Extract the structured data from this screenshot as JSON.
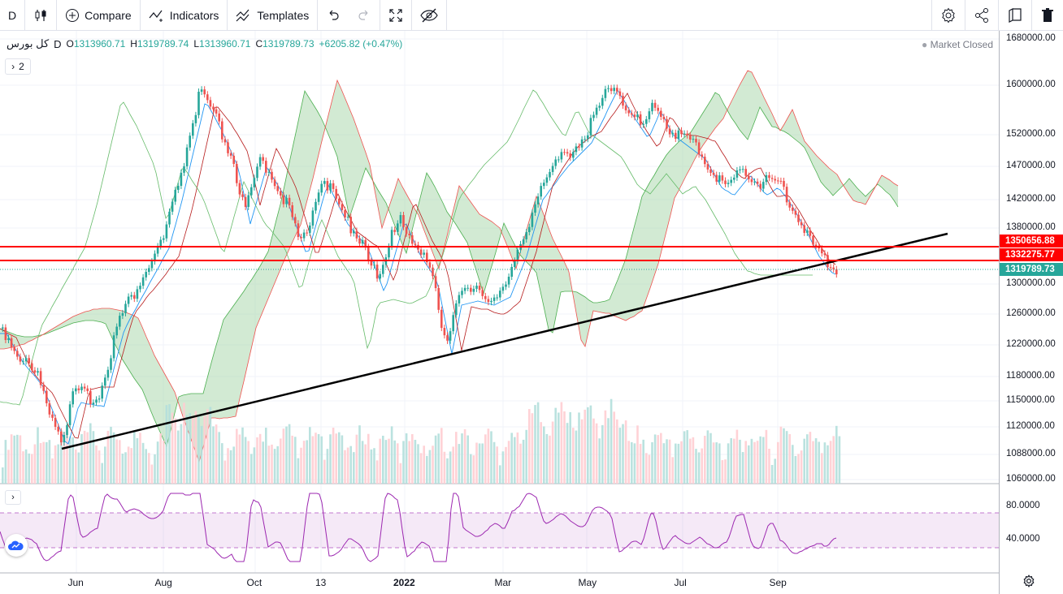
{
  "toolbar": {
    "interval": "D",
    "compare": "Compare",
    "indicators": "Indicators",
    "templates": "Templates"
  },
  "legend": {
    "symbol": "کل بورس",
    "interval": "D",
    "open_label": "O",
    "open": "1313960.71",
    "high_label": "H",
    "high": "1319789.74",
    "low_label": "L",
    "low": "1313960.71",
    "close_label": "C",
    "close": "1319789.73",
    "change": "+6205.82 (+0.47%)",
    "market_status": "Market Closed",
    "collapsed_count": "2"
  },
  "price_axis": {
    "labels": [
      "1680000.00",
      "1600000.00",
      "1520000.00",
      "1470000.00",
      "1420000.00",
      "1380000.00",
      "1300000.00",
      "1260000.00",
      "1220000.00",
      "1180000.00",
      "1150000.00",
      "1120000.00",
      "1088000.00",
      "1060000.00"
    ],
    "tag_red_1": "1350656.88",
    "tag_red_2": "1332275.77",
    "tag_last": "1319789.73"
  },
  "rsi_axis": {
    "labels": [
      "80.0000",
      "40.0000"
    ]
  },
  "time_axis": {
    "labels": [
      "Jun",
      "Aug",
      "Oct",
      "13",
      "2022",
      "Mar",
      "May",
      "Jul",
      "Sep"
    ]
  },
  "colors": {
    "up": "#26a69a",
    "down": "#ef5350",
    "hline": "#ff0000",
    "rsi": "#9c27b0",
    "cloud_green": "#a5d6a7",
    "cloud_red": "#ffcdd2",
    "tenkan": "#2196f3",
    "kijun": "#b71c1c"
  }
}
